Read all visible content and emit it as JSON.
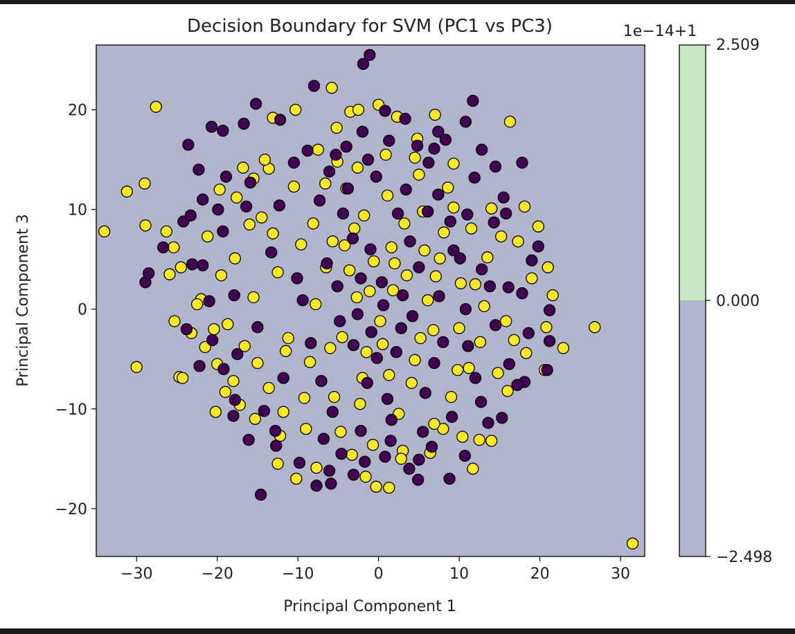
{
  "chart_data": {
    "type": "scatter",
    "title": "Decision Boundary for SVM (PC1 vs PC3)",
    "xlabel": "Principal Component 1",
    "ylabel": "Principal Component 3",
    "xlim": [
      -35,
      33
    ],
    "ylim": [
      -24.8,
      26.5
    ],
    "x_ticks": [
      -30,
      -20,
      -10,
      0,
      10,
      20,
      30
    ],
    "x_tick_labels": [
      "−30",
      "−20",
      "−10",
      "0",
      "10",
      "20",
      "30"
    ],
    "y_ticks": [
      -20,
      -10,
      0,
      10,
      20
    ],
    "y_tick_labels": [
      "−20",
      "−10",
      "0",
      "10",
      "20"
    ],
    "grid": false,
    "decision_region_color": "#b1b5cc",
    "marker_edge_color": "#000000",
    "series": [
      {
        "color": "#fde725",
        "points": [
          [
            -34,
            7.8
          ],
          [
            -31.2,
            11.8
          ],
          [
            -29,
            12.6
          ],
          [
            -28.9,
            8.4
          ],
          [
            -27.6,
            20.3
          ],
          [
            -26.3,
            7.8
          ],
          [
            -25.9,
            3.5
          ],
          [
            -25.4,
            6.2
          ],
          [
            -25.3,
            -1.2
          ],
          [
            -24.5,
            4.2
          ],
          [
            -24.7,
            -6.8
          ],
          [
            -24.3,
            -6.9
          ],
          [
            -30,
            -5.8
          ],
          [
            -22,
            1.0
          ],
          [
            -21.5,
            -3.8
          ],
          [
            -20,
            -5.5
          ],
          [
            -20.2,
            -10.3
          ],
          [
            -19,
            -8.3
          ],
          [
            -17.6,
            11.2
          ],
          [
            -16.8,
            14.2
          ],
          [
            -15.5,
            13.1
          ],
          [
            -15.3,
            -11.0
          ],
          [
            -13.1,
            7.6
          ],
          [
            -13.1,
            19.2
          ],
          [
            -12.5,
            -15.5
          ],
          [
            -11.5,
            -4.2
          ],
          [
            -10.3,
            20.0
          ],
          [
            -10.2,
            -17.0
          ],
          [
            -9.2,
            -8.9
          ],
          [
            -7.7,
            -15.9
          ],
          [
            -7.5,
            16.0
          ],
          [
            -5.8,
            22.2
          ],
          [
            -5.2,
            18.2
          ],
          [
            -4.0,
            12.1
          ],
          [
            -3.5,
            19.8
          ],
          [
            -2.5,
            20.0
          ],
          [
            -1.6,
            -16.8
          ],
          [
            -0.3,
            -17.8
          ],
          [
            0.0,
            20.5
          ],
          [
            1.3,
            -17.9
          ],
          [
            2.3,
            19.3
          ],
          [
            4.8,
            17.1
          ],
          [
            7.0,
            19.5
          ],
          [
            8.0,
            -12.0
          ],
          [
            9.8,
            -6.1
          ],
          [
            11.7,
            -16.0
          ],
          [
            12.5,
            -13.1
          ],
          [
            14.0,
            -13.2
          ],
          [
            16.3,
            18.8
          ],
          [
            16.0,
            -8.2
          ],
          [
            18.1,
            10.3
          ],
          [
            19.0,
            3.1
          ],
          [
            21.0,
            4.2
          ],
          [
            21.6,
            1.4
          ],
          [
            22.9,
            -3.9
          ],
          [
            20.6,
            -6.1
          ],
          [
            26.8,
            -1.8
          ],
          [
            31.5,
            -23.5
          ],
          [
            -6.5,
            4.2
          ],
          [
            -4.5,
            -2.8
          ],
          [
            -3.0,
            8.1
          ],
          [
            -2.0,
            -6.9
          ],
          [
            -1.1,
            1.8
          ],
          [
            0.5,
            -3.5
          ],
          [
            1.6,
            6.2
          ],
          [
            2.5,
            -10.5
          ],
          [
            3.5,
            3.4
          ],
          [
            4.5,
            -5.1
          ],
          [
            5.5,
            9.8
          ],
          [
            6.8,
            -2.1
          ],
          [
            7.6,
            5.1
          ],
          [
            9.0,
            -8.8
          ],
          [
            10.2,
            2.6
          ],
          [
            11.5,
            8.1
          ],
          [
            12.6,
            -3.3
          ],
          [
            13.5,
            5.2
          ],
          [
            14.8,
            -6.4
          ],
          [
            -8.5,
            -5.3
          ],
          [
            -9.6,
            6.5
          ],
          [
            -11.2,
            -2.9
          ],
          [
            -12.5,
            3.7
          ],
          [
            -13.6,
            -7.9
          ],
          [
            -14.5,
            9.2
          ],
          [
            -15.5,
            1.2
          ],
          [
            -16.6,
            -3.7
          ],
          [
            -17.8,
            5.1
          ],
          [
            -18.7,
            -1.5
          ],
          [
            -19.5,
            3.4
          ],
          [
            -6.6,
            12.6
          ],
          [
            -4.7,
            -12.3
          ],
          [
            -2.6,
            14.2
          ],
          [
            -0.7,
            -13.6
          ],
          [
            1.1,
            11.4
          ],
          [
            3.0,
            -14.2
          ],
          [
            5.0,
            13.5
          ],
          [
            6.9,
            -11.5
          ],
          [
            8.6,
            12.2
          ],
          [
            10.4,
            -12.8
          ],
          [
            -7.8,
            0.5
          ],
          [
            -5.5,
            -8.8
          ],
          [
            -3.6,
            3.9
          ],
          [
            -1.8,
            9.4
          ],
          [
            0.2,
            -1.2
          ],
          [
            2.0,
            4.6
          ],
          [
            4.1,
            -7.4
          ],
          [
            6.1,
            0.9
          ],
          [
            8.1,
            7.7
          ],
          [
            10.0,
            -1.9
          ],
          [
            12.0,
            2.5
          ],
          [
            14.0,
            10.1
          ],
          [
            15.8,
            -1.2
          ],
          [
            17.3,
            6.8
          ],
          [
            18.3,
            -4.4
          ],
          [
            -10.5,
            12.3
          ],
          [
            -11.8,
            -10.3
          ],
          [
            -13.6,
            14.1
          ],
          [
            -15.0,
            -5.4
          ],
          [
            -16.0,
            8.5
          ],
          [
            -18.0,
            -7.2
          ],
          [
            -19.7,
            12.0
          ],
          [
            -21.2,
            7.3
          ],
          [
            -22.5,
            0.5
          ],
          [
            -23.2,
            -2.4
          ],
          [
            -9.0,
            -12.0
          ],
          [
            -8.1,
            8.6
          ],
          [
            -6.0,
            -3.9
          ],
          [
            -4.2,
            6.4
          ],
          [
            -2.3,
            -9.5
          ],
          [
            -0.6,
            4.8
          ],
          [
            1.3,
            -6.6
          ],
          [
            3.2,
            8.6
          ],
          [
            5.2,
            -2.9
          ],
          [
            7.1,
            3.3
          ],
          [
            9.3,
            10.2
          ],
          [
            11.2,
            -5.9
          ],
          [
            13.1,
            0.3
          ],
          [
            15.2,
            7.3
          ],
          [
            16.8,
            -3.1
          ],
          [
            -5.1,
            14.8
          ],
          [
            -3.3,
            -14.6
          ],
          [
            0.9,
            15.5
          ],
          [
            2.8,
            -15.0
          ],
          [
            4.5,
            15.2
          ],
          [
            6.4,
            -14.4
          ],
          [
            9.3,
            14.6
          ],
          [
            -14.1,
            15.0
          ],
          [
            -12.2,
            -12.7
          ],
          [
            -17.2,
            -9.6
          ],
          [
            19.8,
            8.3
          ],
          [
            20.8,
            -1.8
          ],
          [
            -20.4,
            -2.0
          ],
          [
            -2.7,
            1.2
          ],
          [
            -1.5,
            -4.3
          ],
          [
            1.8,
            1.9
          ],
          [
            -5.7,
            6.8
          ],
          [
            5.7,
            5.9
          ]
        ]
      },
      {
        "color": "#440154",
        "points": [
          [
            -28.9,
            2.7
          ],
          [
            -28.5,
            3.6
          ],
          [
            -26.7,
            6.2
          ],
          [
            -23.6,
            16.5
          ],
          [
            -24.2,
            8.8
          ],
          [
            -23.3,
            9.4
          ],
          [
            -20.7,
            18.3
          ],
          [
            -19.3,
            17.9
          ],
          [
            -16.7,
            18.6
          ],
          [
            -22.3,
            14.0
          ],
          [
            -23.8,
            -2.0
          ],
          [
            -21.8,
            4.4
          ],
          [
            -19.2,
            -6.0
          ],
          [
            -17.8,
            -9.1
          ],
          [
            -15.2,
            20.6
          ],
          [
            -14.6,
            -18.6
          ],
          [
            -12.8,
            -12.2
          ],
          [
            -12.7,
            -13.7
          ],
          [
            -12.2,
            19.0
          ],
          [
            -10.5,
            14.7
          ],
          [
            -8.0,
            22.4
          ],
          [
            -7.7,
            -17.7
          ],
          [
            -6.1,
            -16.2
          ],
          [
            -5.3,
            15.5
          ],
          [
            -1.9,
            24.6
          ],
          [
            -1.1,
            25.5
          ],
          [
            -2.0,
            17.8
          ],
          [
            0.8,
            19.9
          ],
          [
            1.5,
            -13.2
          ],
          [
            3.3,
            19.1
          ],
          [
            3.8,
            -16.0
          ],
          [
            5.0,
            -15.1
          ],
          [
            4.8,
            16.4
          ],
          [
            6.2,
            14.7
          ],
          [
            7.4,
            17.8
          ],
          [
            8.3,
            17.0
          ],
          [
            11.7,
            20.9
          ],
          [
            10.8,
            18.8
          ],
          [
            12.8,
            16.0
          ],
          [
            14.5,
            14.3
          ],
          [
            17.8,
            14.7
          ],
          [
            19.8,
            6.3
          ],
          [
            19.0,
            4.9
          ],
          [
            21.2,
            -0.1
          ],
          [
            21.2,
            -3.2
          ],
          [
            20.9,
            -6.1
          ],
          [
            18.1,
            -7.3
          ],
          [
            15.3,
            -10.9
          ],
          [
            8.8,
            -17.0
          ],
          [
            4.9,
            -17.1
          ],
          [
            -3.1,
            -16.6
          ],
          [
            -5.9,
            -17.5
          ],
          [
            -9.8,
            -15.4
          ],
          [
            -6.4,
            4.6
          ],
          [
            -4.8,
            -1.2
          ],
          [
            -3.2,
            7.1
          ],
          [
            -1.4,
            -7.4
          ],
          [
            0.4,
            2.7
          ],
          [
            2.2,
            -4.3
          ],
          [
            3.9,
            6.8
          ],
          [
            5.8,
            -8.4
          ],
          [
            7.5,
            1.3
          ],
          [
            9.3,
            5.9
          ],
          [
            11.1,
            -3.7
          ],
          [
            12.8,
            4.0
          ],
          [
            14.5,
            -1.6
          ],
          [
            16.1,
            2.2
          ],
          [
            -8.4,
            -3.4
          ],
          [
            -10.1,
            3.1
          ],
          [
            -11.8,
            -6.9
          ],
          [
            -13.3,
            5.7
          ],
          [
            -15.0,
            -1.8
          ],
          [
            -16.4,
            10.3
          ],
          [
            -17.9,
            1.4
          ],
          [
            -19.3,
            7.8
          ],
          [
            -20.6,
            -3.1
          ],
          [
            -7.3,
            10.9
          ],
          [
            -5.7,
            -10.3
          ],
          [
            -3.8,
            12.1
          ],
          [
            -2.2,
            -12.2
          ],
          [
            -0.3,
            13.3
          ],
          [
            1.6,
            -11.1
          ],
          [
            3.4,
            12.0
          ],
          [
            5.5,
            -12.3
          ],
          [
            7.4,
            11.5
          ],
          [
            9.1,
            -10.8
          ],
          [
            11.0,
            9.5
          ],
          [
            -9.4,
            0.9
          ],
          [
            -7.1,
            -7.2
          ],
          [
            -5.1,
            2.3
          ],
          [
            -3.1,
            -3.6
          ],
          [
            -1.0,
            6.0
          ],
          [
            1.1,
            -9.0
          ],
          [
            3.0,
            1.4
          ],
          [
            5.0,
            4.2
          ],
          [
            6.9,
            -5.4
          ],
          [
            8.9,
            8.8
          ],
          [
            10.8,
            0.0
          ],
          [
            12.7,
            -9.3
          ],
          [
            14.3,
            8.7
          ],
          [
            16.2,
            -5.5
          ],
          [
            17.8,
            1.6
          ],
          [
            -12.3,
            10.4
          ],
          [
            -14.2,
            -10.2
          ],
          [
            -15.9,
            12.7
          ],
          [
            -17.5,
            -4.5
          ],
          [
            -18.9,
            13.3
          ],
          [
            -21.0,
            0.8
          ],
          [
            -22.2,
            -5.7
          ],
          [
            -6.8,
            -13.0
          ],
          [
            -4.4,
            9.6
          ],
          [
            -2.6,
            -0.5
          ],
          [
            -0.2,
            -4.9
          ],
          [
            2.4,
            9.6
          ],
          [
            4.2,
            -0.7
          ],
          [
            6.1,
            9.8
          ],
          [
            8.0,
            -3.3
          ],
          [
            10.1,
            5.1
          ],
          [
            12.0,
            -6.9
          ],
          [
            13.8,
            2.3
          ],
          [
            15.5,
            11.2
          ],
          [
            17.2,
            -7.6
          ],
          [
            -8.8,
            15.9
          ],
          [
            -6.1,
            13.8
          ],
          [
            -4.0,
            16.3
          ],
          [
            -1.3,
            15.0
          ],
          [
            1.3,
            16.9
          ],
          [
            6.9,
            16.1
          ],
          [
            11.9,
            13.2
          ],
          [
            15.8,
            9.6
          ],
          [
            -4.6,
            -14.5
          ],
          [
            -1.7,
            -15.3
          ],
          [
            0.8,
            -14.8
          ],
          [
            6.6,
            -13.8
          ],
          [
            10.7,
            -14.7
          ],
          [
            13.6,
            -11.4
          ],
          [
            18.6,
            -2.4
          ],
          [
            -19.9,
            10.0
          ],
          [
            -21.8,
            11.0
          ],
          [
            -23.1,
            4.5
          ],
          [
            -18.0,
            -10.7
          ],
          [
            -16.1,
            -13.1
          ],
          [
            0.6,
            0.4
          ],
          [
            -0.9,
            -2.3
          ],
          [
            2.8,
            -1.9
          ],
          [
            -2.2,
            3.1
          ]
        ]
      }
    ],
    "colorbar": {
      "title": "1e−14+1",
      "tick_labels": [
        "2.509",
        "0.000",
        "−2.498"
      ],
      "bands": [
        {
          "from": "0.000",
          "to": "2.509",
          "color": "#c8e8c3"
        },
        {
          "from": "−2.498",
          "to": "0.000",
          "color": "#b1b5cc"
        }
      ]
    }
  }
}
